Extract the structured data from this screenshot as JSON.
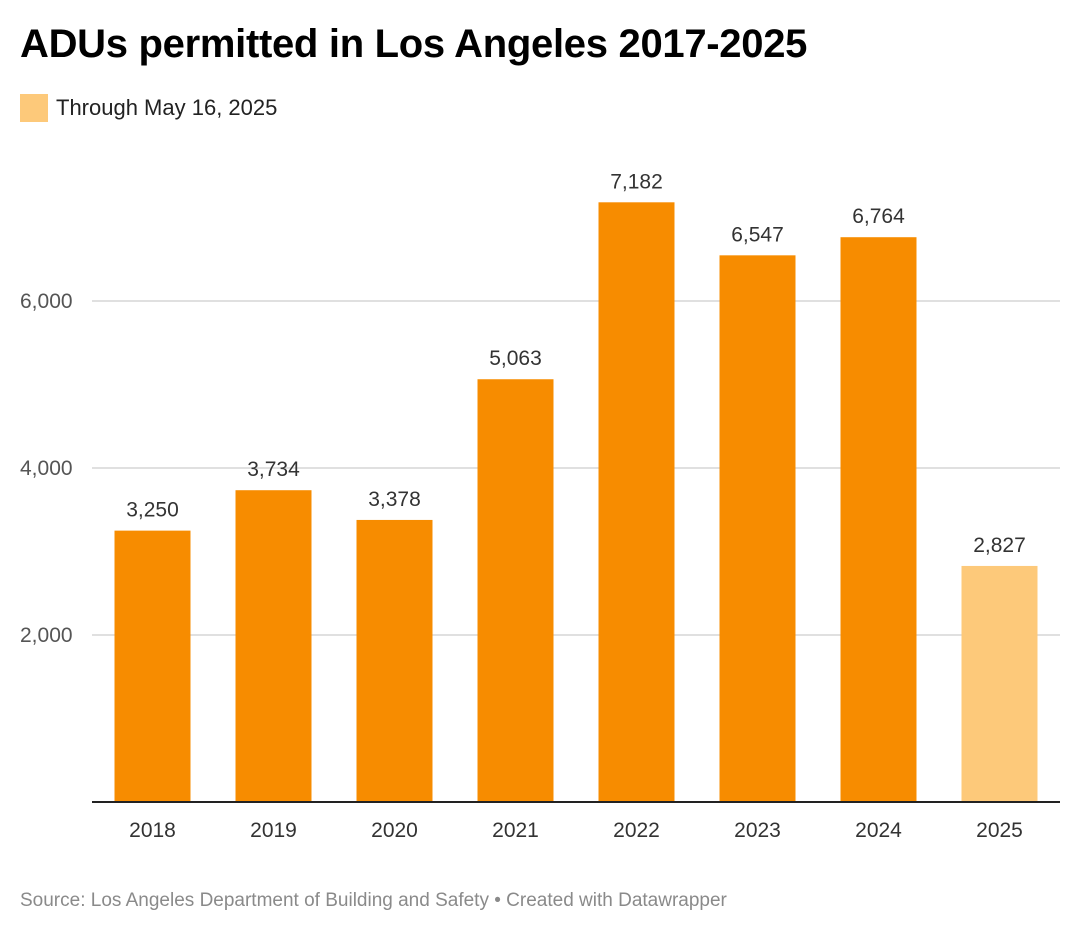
{
  "header": {
    "title": "ADUs permitted in Los Angeles 2017-2025"
  },
  "legend": {
    "label": "Through May 16, 2025",
    "color": "#fdc97a"
  },
  "footer": {
    "source": "Source: Los Angeles Department of Building and Safety • Created with Datawrapper"
  },
  "chart_data": {
    "type": "bar",
    "title": "ADUs permitted in Los Angeles 2017-2025",
    "xlabel": "",
    "ylabel": "",
    "categories": [
      "2018",
      "2019",
      "2020",
      "2021",
      "2022",
      "2023",
      "2024",
      "2025"
    ],
    "values": [
      3250,
      3734,
      3378,
      5063,
      7182,
      6547,
      6764,
      2827
    ],
    "value_labels": [
      "3,250",
      "3,734",
      "3,378",
      "5,063",
      "7,182",
      "6,547",
      "6,764",
      "2,827"
    ],
    "highlight_category": "2025",
    "bar_color": "#f78c00",
    "highlight_color": "#fdc97a",
    "ylim": [
      0,
      7500
    ],
    "yticks": [
      2000,
      4000,
      6000
    ],
    "ytick_labels": [
      "2,000",
      "4,000",
      "6,000"
    ],
    "grid": true,
    "legend_position": "top-left"
  }
}
